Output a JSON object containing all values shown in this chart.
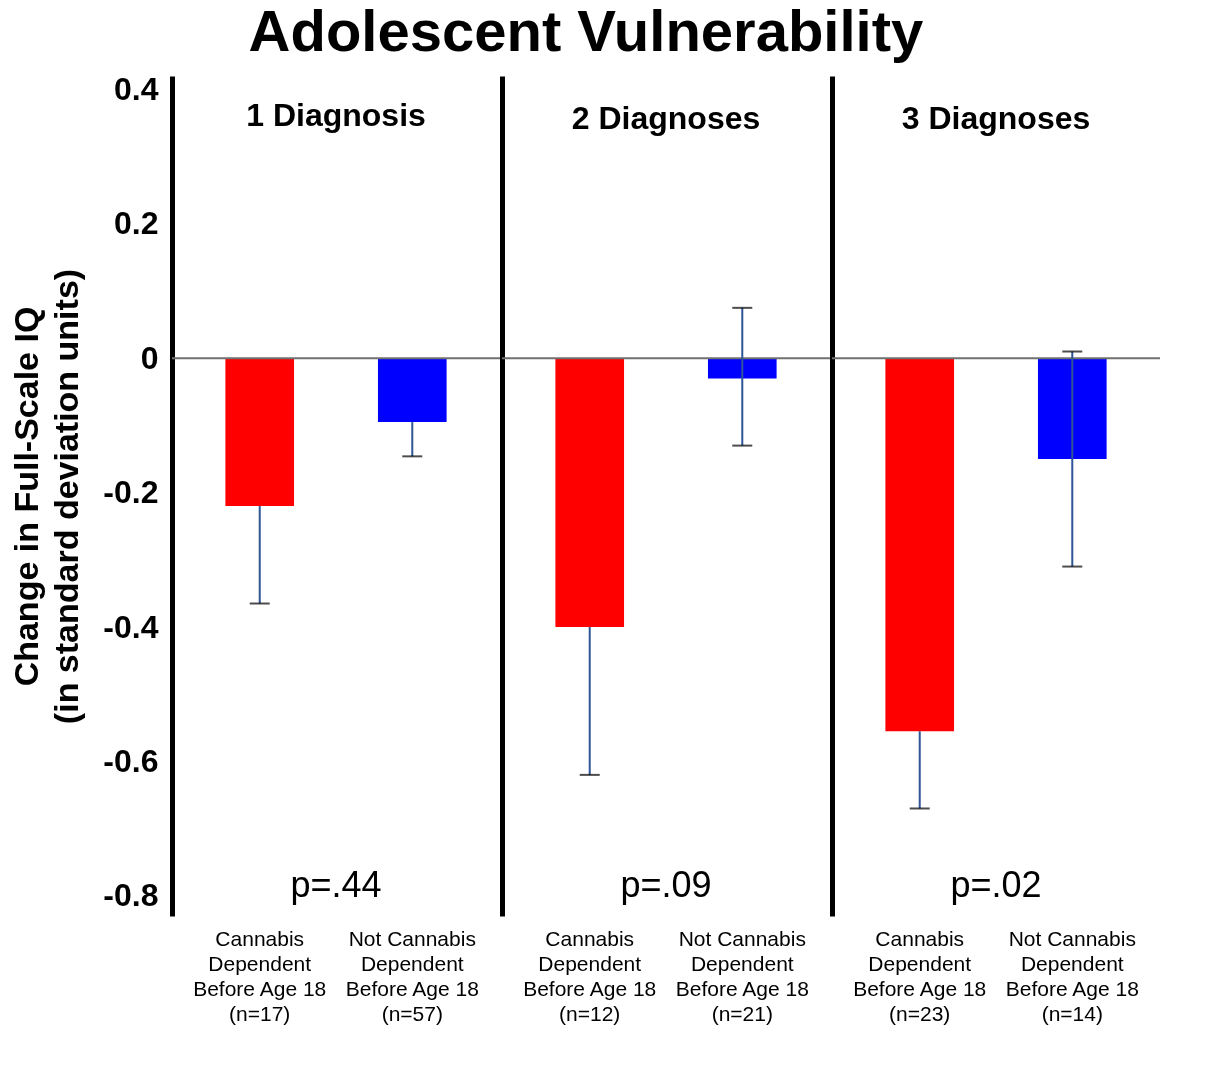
{
  "chart_data": [
    {
      "type": "other",
      "title": "Adolescent Vulnerability"
    },
    {
      "type": "bar",
      "title": "1 Diagnosis",
      "ylabel": "Change in Full-Scale IQ\n(in standard deviation units)",
      "categories": [
        "Cannabis\nDependent\nBefore Age 18\n(n=17)",
        "Not Cannabis\nDependent\nBefore Age 18\n(n=57)"
      ],
      "values": [
        -0.22,
        -0.095
      ],
      "colors": [
        "#ff0000",
        "#0000ff"
      ],
      "errors": [
        [
          -0.365,
          -0.22
        ],
        [
          -0.146,
          -0.095
        ]
      ],
      "ylim": [
        -0.83,
        0.42
      ],
      "yticks": [
        -0.8,
        -0.6,
        -0.4,
        -0.2,
        0,
        0.2,
        0.4
      ],
      "ref_lines": [
        {
          "axis": "y",
          "value": 0,
          "color": "#707070"
        }
      ],
      "annotations": [
        "p=.44"
      ],
      "grid": false
    },
    {
      "type": "bar",
      "title": "2 Diagnoses",
      "categories": [
        "Cannabis\nDependent\nBefore Age 18\n(n=12)",
        "Not Cannabis\nDependent\nBefore Age 18\n(n=21)"
      ],
      "values": [
        -0.4,
        -0.03
      ],
      "colors": [
        "#ff0000",
        "#0000ff"
      ],
      "errors": [
        [
          -0.62,
          -0.4
        ],
        [
          -0.13,
          0.075
        ]
      ],
      "ylim": [
        -0.83,
        0.42
      ],
      "yticks": [
        -0.8,
        -0.6,
        -0.4,
        -0.2,
        0,
        0.2,
        0.4
      ],
      "tick_labels": "x",
      "ref_lines": [
        {
          "axis": "y",
          "value": 0,
          "color": "#707070"
        }
      ],
      "annotations": [
        "p=.09"
      ],
      "grid": false
    },
    {
      "type": "bar",
      "title": "3 Diagnoses",
      "categories": [
        "Cannabis\nDependent\nBefore Age 18\n(n=23)",
        "Not Cannabis\nDependent\nBefore Age 18\n(n=14)"
      ],
      "values": [
        -0.555,
        -0.15
      ],
      "colors": [
        "#ff0000",
        "#0000ff"
      ],
      "errors": [
        [
          -0.67,
          -0.555
        ],
        [
          -0.31,
          0.01
        ]
      ],
      "ylim": [
        -0.83,
        0.42
      ],
      "yticks": [
        -0.8,
        -0.6,
        -0.4,
        -0.2,
        0,
        0.2,
        0.4
      ],
      "tick_labels": "x",
      "ref_lines": [
        {
          "axis": "y",
          "value": 0,
          "color": "#707070"
        }
      ],
      "annotations": [
        "p=.02"
      ],
      "grid": false
    }
  ]
}
